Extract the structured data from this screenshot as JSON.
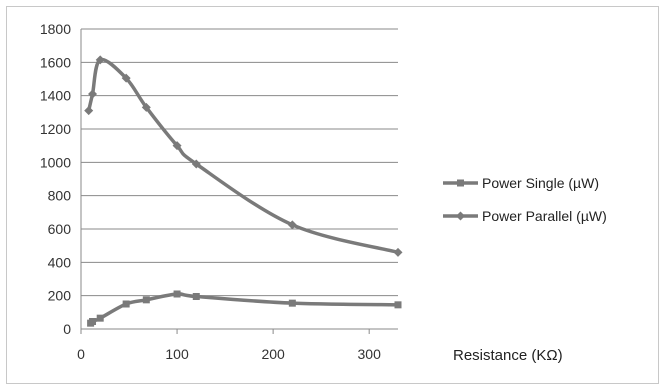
{
  "chart_data": {
    "type": "line",
    "title": "",
    "xlabel": "Resistance (KΩ)",
    "ylabel": "",
    "xlim": [
      0,
      330
    ],
    "ylim": [
      0,
      1800
    ],
    "xticks": [
      "0",
      "100",
      "200",
      "300"
    ],
    "yticks": [
      "0",
      "200",
      "400",
      "600",
      "800",
      "1000",
      "1200",
      "1400",
      "1600",
      "1800"
    ],
    "grid": "horizontal",
    "legend_position": "right",
    "series": [
      {
        "name": "Power Single (µW)",
        "marker": "square",
        "color": "#7a7a7a",
        "points": [
          [
            10,
            35
          ],
          [
            12,
            45
          ],
          [
            20,
            65
          ],
          [
            47,
            150
          ],
          [
            68,
            175
          ],
          [
            100,
            210
          ],
          [
            120,
            195
          ],
          [
            220,
            155
          ],
          [
            330,
            145
          ]
        ]
      },
      {
        "name": "Power Parallel (µW)",
        "marker": "diamond",
        "color": "#7a7a7a",
        "points": [
          [
            8,
            1310
          ],
          [
            12,
            1410
          ],
          [
            20,
            1615
          ],
          [
            47,
            1505
          ],
          [
            68,
            1330
          ],
          [
            100,
            1100
          ],
          [
            120,
            990
          ],
          [
            220,
            625
          ],
          [
            330,
            460
          ]
        ]
      }
    ]
  }
}
